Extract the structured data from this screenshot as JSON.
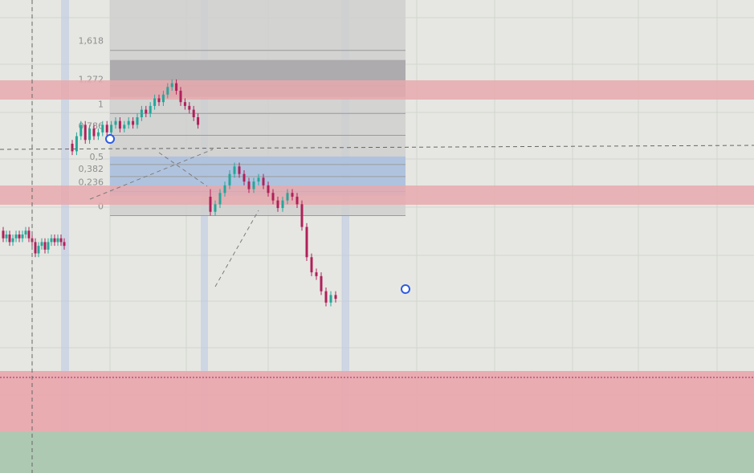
{
  "chart_data": {
    "type": "candlestick",
    "title": "",
    "xlabel": "",
    "ylabel": "",
    "grid": true,
    "colors": {
      "up": "#26a69a",
      "down": "#b0205a",
      "background": "#e6e7e2",
      "fib_zone": "#cfcfcf",
      "fib_dark_zone": "#a8a6a8",
      "red_zone": "#e8a9ae",
      "blue_zone": "#a9bfe0",
      "green_zone": "#aec9b2",
      "handle": "#2d5be3"
    },
    "ylim": [
      0,
      100
    ],
    "fibonacci": {
      "levels": [
        {
          "label": "1,618",
          "value": 1.618
        },
        {
          "label": "1,272",
          "value": 1.272
        },
        {
          "label": "1",
          "value": 1
        },
        {
          "label": "0,786",
          "value": 0.786
        },
        {
          "label": "0,5",
          "value": 0.5
        },
        {
          "label": "0,382",
          "value": 0.382
        },
        {
          "label": "0,236",
          "value": 0.236
        },
        {
          "label": "0",
          "value": 0
        }
      ],
      "anchor_high": 70,
      "anchor_low": 43
    },
    "candles": [
      [
        39,
        37,
        40,
        36
      ],
      [
        37,
        38,
        39,
        36
      ],
      [
        38,
        36,
        39,
        35
      ],
      [
        36,
        37,
        38,
        35
      ],
      [
        37,
        38,
        39,
        36
      ],
      [
        38,
        37,
        39,
        36
      ],
      [
        37,
        38,
        39,
        36
      ],
      [
        38,
        39,
        40,
        37
      ],
      [
        39,
        37,
        40,
        36
      ],
      [
        37,
        36,
        38,
        35
      ],
      [
        36,
        33,
        37,
        32
      ],
      [
        33,
        35,
        36,
        32
      ],
      [
        35,
        36,
        37,
        34
      ],
      [
        36,
        34,
        37,
        33
      ],
      [
        34,
        36,
        37,
        33
      ],
      [
        36,
        37,
        38,
        35
      ],
      [
        37,
        36,
        38,
        35
      ],
      [
        36,
        37,
        38,
        35
      ],
      [
        37,
        36,
        38,
        35
      ],
      [
        36,
        35,
        37,
        34
      ],
      [
        62,
        60,
        63,
        59
      ],
      [
        60,
        64,
        65,
        59
      ],
      [
        64,
        67,
        68,
        63
      ],
      [
        67,
        63,
        68,
        62
      ],
      [
        63,
        66,
        67,
        62
      ],
      [
        66,
        64,
        67,
        63
      ],
      [
        64,
        65,
        66,
        63
      ],
      [
        65,
        67,
        68,
        64
      ],
      [
        67,
        65,
        68,
        64
      ],
      [
        65,
        67,
        68,
        64
      ],
      [
        67,
        68,
        69,
        66
      ],
      [
        68,
        66,
        69,
        65
      ],
      [
        66,
        67,
        68,
        65
      ],
      [
        67,
        68,
        69,
        66
      ],
      [
        68,
        67,
        69,
        66
      ],
      [
        67,
        69,
        70,
        66
      ],
      [
        69,
        71,
        72,
        68
      ],
      [
        71,
        70,
        72,
        69
      ],
      [
        70,
        72,
        73,
        69
      ],
      [
        72,
        74,
        75,
        71
      ],
      [
        74,
        73,
        75,
        72
      ],
      [
        73,
        75,
        76,
        72
      ],
      [
        75,
        77,
        78,
        74
      ],
      [
        77,
        78,
        79,
        76
      ],
      [
        78,
        76,
        79,
        75
      ],
      [
        76,
        73,
        77,
        72
      ],
      [
        73,
        72,
        74,
        71
      ],
      [
        72,
        71,
        73,
        70
      ],
      [
        71,
        69,
        72,
        68
      ],
      [
        69,
        67,
        70,
        66
      ],
      [
        48,
        44,
        50,
        43
      ],
      [
        44,
        46,
        47,
        43
      ],
      [
        46,
        49,
        50,
        45
      ],
      [
        49,
        51,
        52,
        48
      ],
      [
        51,
        54,
        55,
        50
      ],
      [
        54,
        56,
        57,
        53
      ],
      [
        56,
        54,
        57,
        53
      ],
      [
        54,
        52,
        55,
        51
      ],
      [
        52,
        50,
        53,
        49
      ],
      [
        50,
        52,
        53,
        49
      ],
      [
        52,
        53,
        54,
        51
      ],
      [
        53,
        51,
        54,
        50
      ],
      [
        51,
        49,
        52,
        48
      ],
      [
        49,
        47,
        50,
        46
      ],
      [
        47,
        45,
        48,
        44
      ],
      [
        45,
        47,
        48,
        44
      ],
      [
        47,
        49,
        50,
        46
      ],
      [
        49,
        48,
        50,
        47
      ],
      [
        48,
        46,
        49,
        45
      ],
      [
        46,
        40,
        47,
        39
      ],
      [
        40,
        32,
        41,
        31
      ],
      [
        32,
        28,
        33,
        27
      ],
      [
        28,
        27,
        29,
        26
      ],
      [
        27,
        23,
        28,
        22
      ],
      [
        23,
        20,
        24,
        19
      ],
      [
        20,
        22,
        23,
        19
      ],
      [
        22,
        21,
        23,
        20
      ]
    ]
  }
}
